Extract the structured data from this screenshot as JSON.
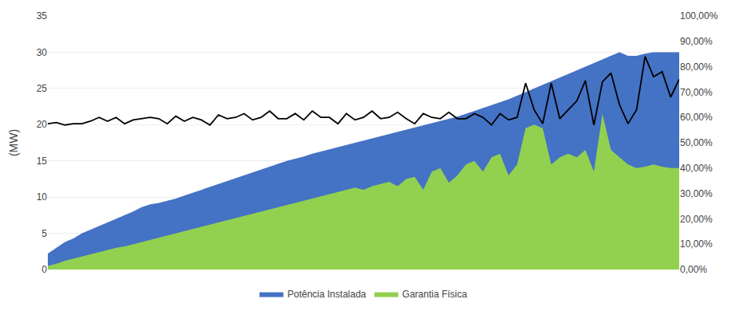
{
  "chart_data": {
    "type": "area",
    "ylabel": "(MW)",
    "ylim": [
      0,
      35
    ],
    "yticks": [
      0,
      5,
      10,
      15,
      20,
      25,
      30,
      35
    ],
    "y2lim": [
      0,
      1.0
    ],
    "y2ticks": [
      {
        "value": 0.0,
        "label": "0,00%"
      },
      {
        "value": 0.1,
        "label": "10,00%"
      },
      {
        "value": 0.2,
        "label": "20,00%"
      },
      {
        "value": 0.3,
        "label": "30,00%"
      },
      {
        "value": 0.4,
        "label": "40,00%"
      },
      {
        "value": 0.5,
        "label": "50,00%"
      },
      {
        "value": 0.6,
        "label": "60,00%"
      },
      {
        "value": 0.7,
        "label": "70,00%"
      },
      {
        "value": 0.8,
        "label": "80,00%"
      },
      {
        "value": 0.9,
        "label": "90,00%"
      },
      {
        "value": 1.0,
        "label": "100,00%"
      }
    ],
    "grid": true,
    "legend": "bottom",
    "tick_labels": "y",
    "series": [
      {
        "name": "Potência Instalada",
        "color": "#4472C4",
        "type": "area",
        "values": [
          2.2,
          3.0,
          3.8,
          4.3,
          5.0,
          5.5,
          6.0,
          6.5,
          7.0,
          7.5,
          8.0,
          8.6,
          9.0,
          9.2,
          9.5,
          9.8,
          10.2,
          10.6,
          11.0,
          11.4,
          11.8,
          12.2,
          12.6,
          13.0,
          13.4,
          13.8,
          14.2,
          14.6,
          15.0,
          15.3,
          15.6,
          16.0,
          16.3,
          16.6,
          16.9,
          17.2,
          17.5,
          17.8,
          18.1,
          18.4,
          18.7,
          19.0,
          19.3,
          19.6,
          19.9,
          20.2,
          20.5,
          20.8,
          21.1,
          21.5,
          21.9,
          22.3,
          22.7,
          23.1,
          23.5,
          24.0,
          24.5,
          25.0,
          25.5,
          26.0,
          26.5,
          27.0,
          27.5,
          28.0,
          28.5,
          29.0,
          29.5,
          30.0,
          29.5,
          29.5,
          29.8,
          30.0,
          30.0,
          30.0,
          30.0
        ]
      },
      {
        "name": "Garantia Física",
        "color": "#92D050",
        "type": "area",
        "values": [
          0.5,
          0.8,
          1.2,
          1.5,
          1.8,
          2.1,
          2.4,
          2.7,
          3.0,
          3.2,
          3.5,
          3.8,
          4.1,
          4.4,
          4.7,
          5.0,
          5.3,
          5.6,
          5.9,
          6.2,
          6.5,
          6.8,
          7.1,
          7.4,
          7.7,
          8.0,
          8.3,
          8.6,
          8.9,
          9.2,
          9.5,
          9.8,
          10.1,
          10.4,
          10.7,
          11.0,
          11.3,
          11.0,
          11.5,
          11.8,
          12.1,
          11.5,
          12.5,
          12.8,
          11.0,
          13.5,
          14.0,
          12.0,
          13.0,
          14.5,
          15.0,
          13.5,
          15.5,
          16.0,
          13.0,
          14.5,
          19.5,
          20.0,
          19.5,
          14.5,
          15.5,
          16.0,
          15.5,
          16.5,
          13.5,
          21.5,
          16.5,
          15.5,
          14.5,
          14.0,
          14.2,
          14.5,
          14.2,
          14.0,
          14.0
        ]
      },
      {
        "color": "#000000",
        "type": "line",
        "axis": "y2",
        "values": [
          0.575,
          0.58,
          0.57,
          0.575,
          0.575,
          0.585,
          0.6,
          0.585,
          0.6,
          0.575,
          0.59,
          0.595,
          0.6,
          0.595,
          0.575,
          0.605,
          0.585,
          0.6,
          0.59,
          0.57,
          0.61,
          0.595,
          0.6,
          0.615,
          0.59,
          0.6,
          0.625,
          0.595,
          0.595,
          0.615,
          0.59,
          0.625,
          0.6,
          0.6,
          0.575,
          0.615,
          0.59,
          0.6,
          0.625,
          0.595,
          0.6,
          0.62,
          0.595,
          0.575,
          0.615,
          0.6,
          0.595,
          0.62,
          0.595,
          0.595,
          0.615,
          0.6,
          0.57,
          0.615,
          0.59,
          0.6,
          0.735,
          0.63,
          0.575,
          0.735,
          0.595,
          0.63,
          0.665,
          0.745,
          0.57,
          0.74,
          0.775,
          0.65,
          0.575,
          0.63,
          0.84,
          0.76,
          0.78,
          0.68,
          0.75
        ]
      }
    ]
  }
}
